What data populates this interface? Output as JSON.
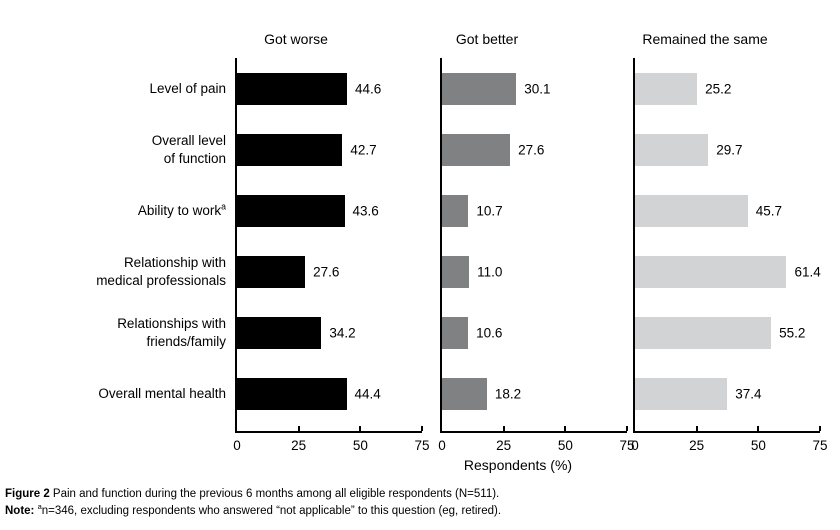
{
  "figure": {
    "caption_label": "Figure 2",
    "caption_text": " Pain and function during the previous 6 months among all eligible respondents (N=511).",
    "note_label": "Note:",
    "note_sup": "a",
    "note_text": "n=346, excluding respondents who answered “not applicable” to this question (eg, retired)."
  },
  "chart_data": {
    "type": "bar",
    "orientation": "horizontal",
    "title": "Pain and function during the previous 6 months among all eligible respondents (N=511)",
    "xlabel": "Respondents (%)",
    "xlim": [
      0,
      75
    ],
    "xticks": [
      0,
      25,
      50,
      75
    ],
    "grid": false,
    "value_labels_shown": true,
    "categories": [
      {
        "lines": [
          "Level of pain"
        ],
        "sup": ""
      },
      {
        "lines": [
          "Overall level",
          "of function"
        ],
        "sup": ""
      },
      {
        "lines": [
          "Ability to work"
        ],
        "sup": "a"
      },
      {
        "lines": [
          "Relationship with",
          "medical professionals"
        ],
        "sup": ""
      },
      {
        "lines": [
          "Relationships with",
          "friends/family"
        ],
        "sup": ""
      },
      {
        "lines": [
          "Overall mental health"
        ],
        "sup": ""
      }
    ],
    "panels": [
      {
        "title": "Got worse",
        "color": "#000000",
        "values": [
          44.6,
          42.7,
          43.6,
          27.6,
          34.2,
          44.4
        ]
      },
      {
        "title": "Got better",
        "color": "#7f8183",
        "values": [
          30.1,
          27.6,
          10.7,
          11.0,
          10.6,
          18.2
        ]
      },
      {
        "title": "Remained the same",
        "color": "#d2d3d5",
        "values": [
          25.2,
          29.7,
          45.7,
          61.4,
          55.2,
          37.4
        ]
      }
    ]
  }
}
